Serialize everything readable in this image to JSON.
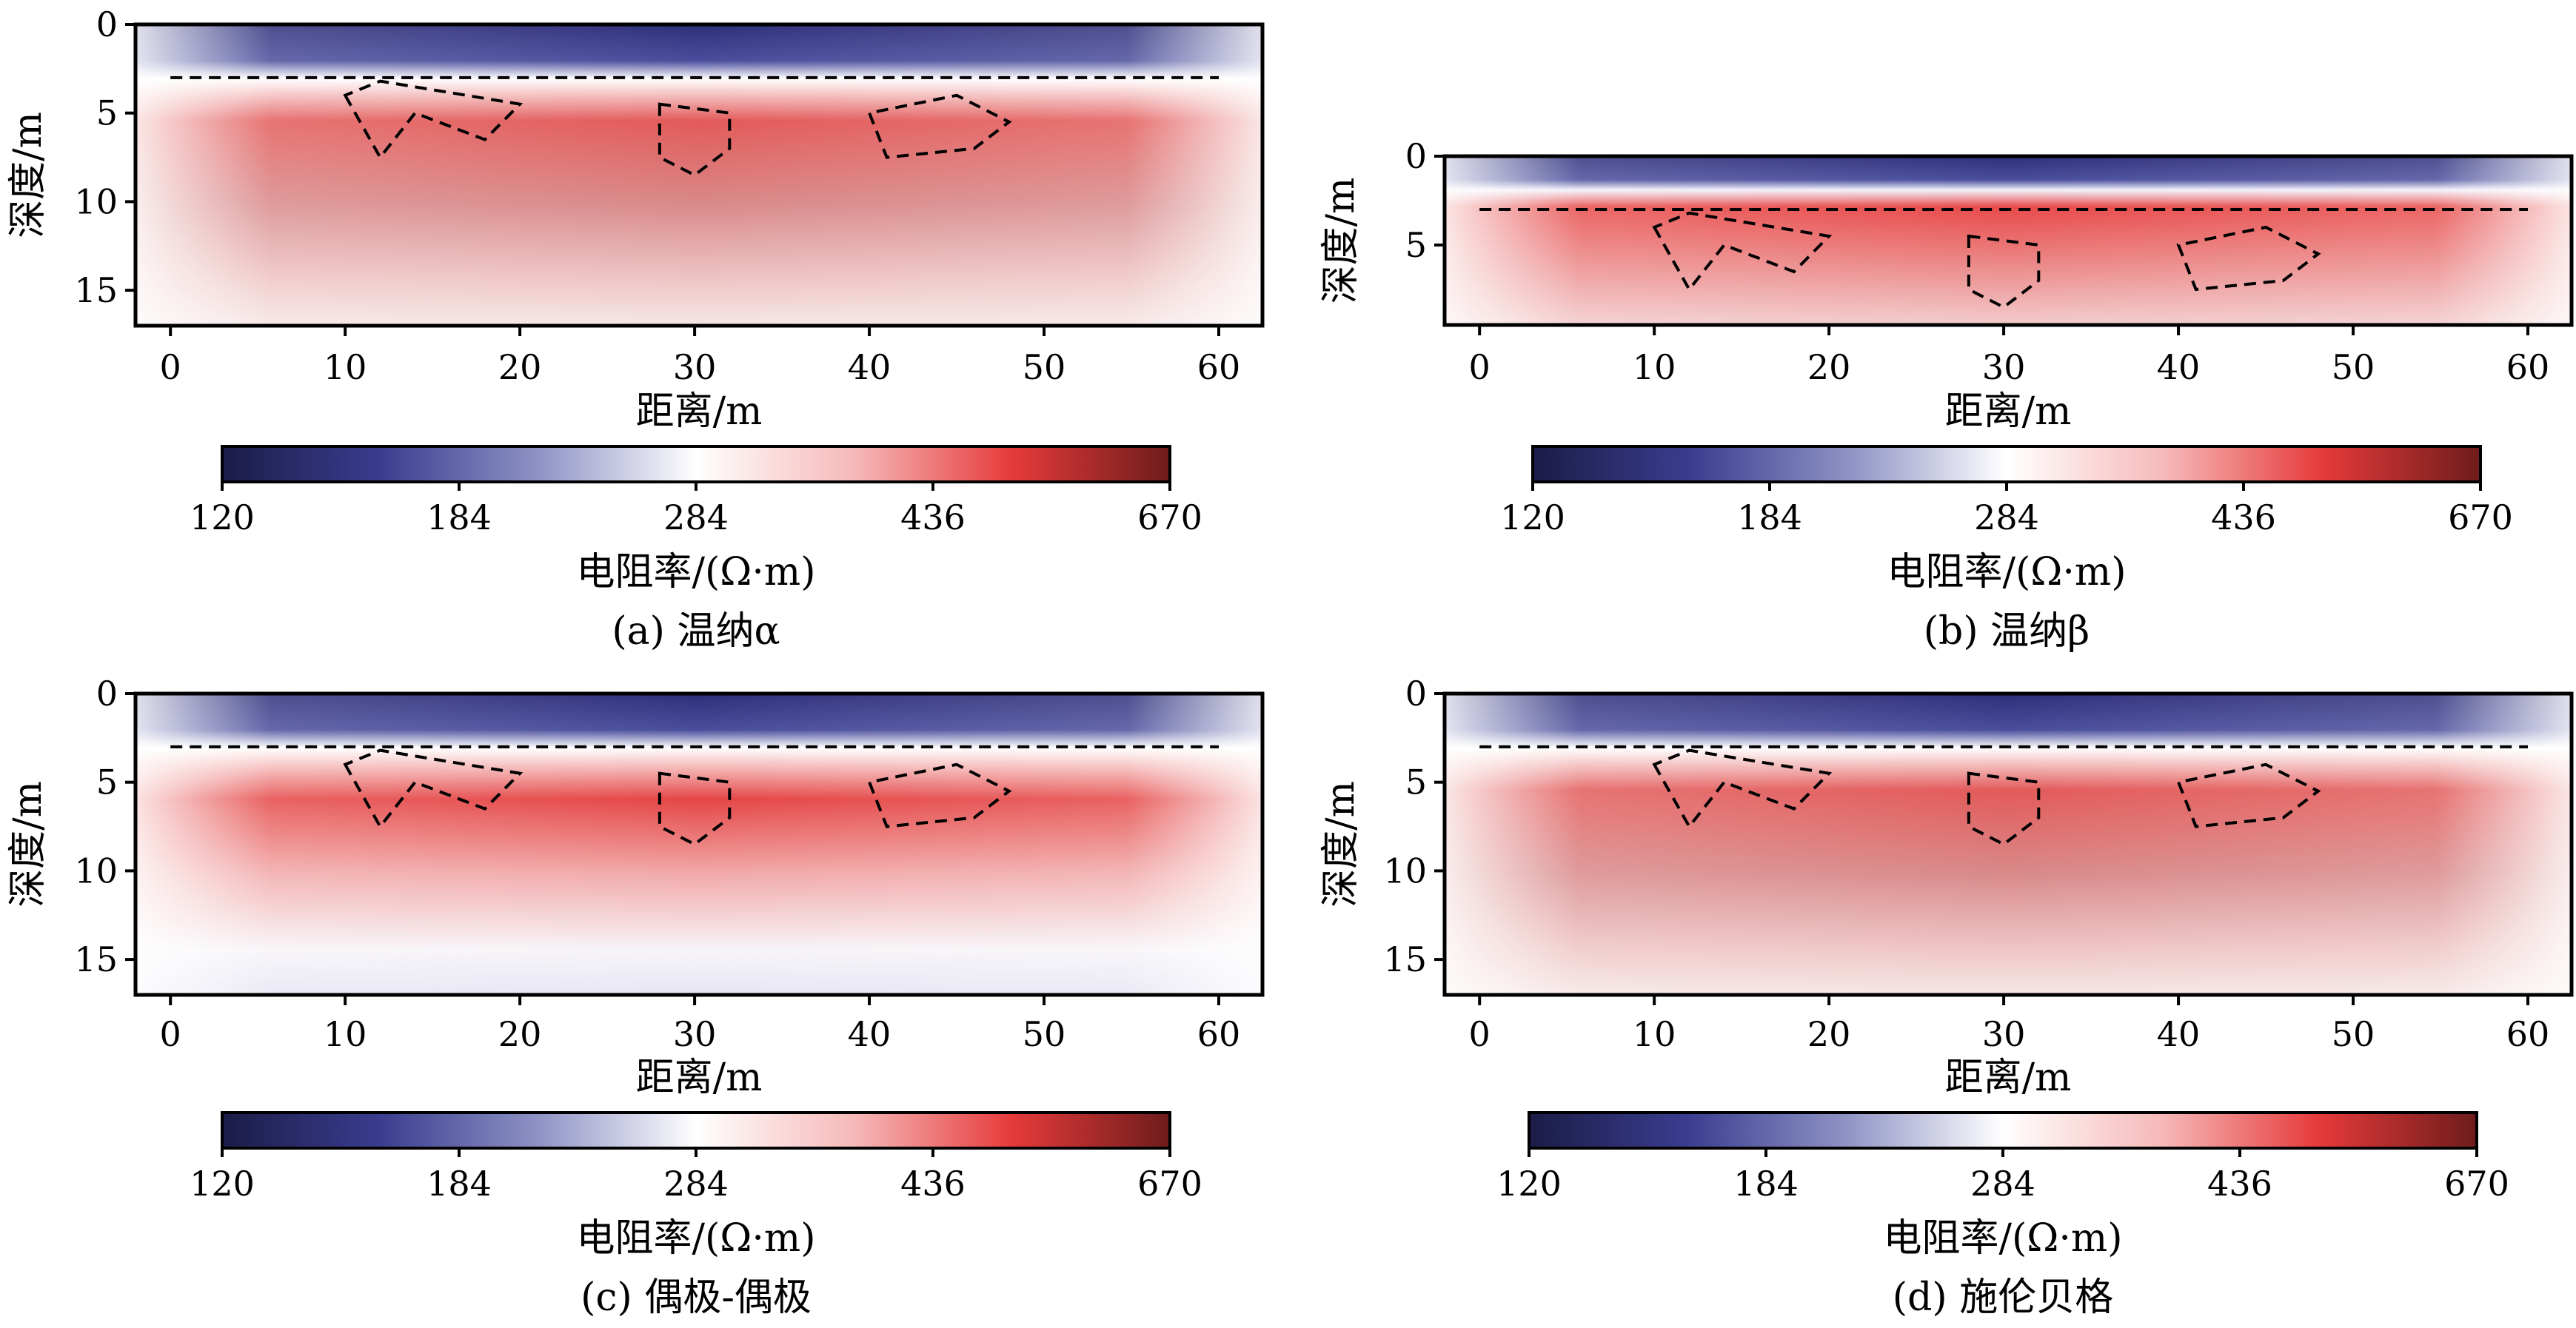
{
  "panels": [
    {
      "caption": "(a) 温纳α"
    },
    {
      "caption": "(b) 温纳β"
    },
    {
      "caption": "(c) 偶极-偶极"
    },
    {
      "caption": "(d) 施伦贝格"
    }
  ],
  "colorbar": {
    "label": "电阻率/(Ω·m)",
    "ticks": [
      "120",
      "184",
      "284",
      "436",
      "670"
    ],
    "colors": [
      "#1b1c47",
      "#3a3d8f",
      "#8e92c4",
      "#ffffff",
      "#f6b9b9",
      "#e63a3a",
      "#6e1c1c"
    ]
  },
  "chart_data": [
    {
      "type": "heatmap",
      "caption": "(a) 温纳α",
      "xlabel": "距离/m",
      "ylabel": "深度/m",
      "xlim": [
        -2,
        62.5
      ],
      "ylim": [
        17,
        0
      ],
      "xticks": [
        0,
        10,
        20,
        30,
        40,
        50,
        60
      ],
      "yticks": [
        0,
        5,
        10,
        15
      ],
      "boundary_depth": 3,
      "colorbar_range": [
        120,
        670
      ],
      "anomalies": [
        {
          "points": [
            [
              10,
              4
            ],
            [
              12,
              7.5
            ],
            [
              14,
              5
            ],
            [
              18,
              6.5
            ],
            [
              20,
              4.5
            ],
            [
              12,
              3.2
            ]
          ]
        },
        {
          "points": [
            [
              28,
              4.5
            ],
            [
              28,
              7.5
            ],
            [
              30,
              8.5
            ],
            [
              32,
              7
            ],
            [
              32,
              5
            ]
          ]
        },
        {
          "points": [
            [
              40,
              5
            ],
            [
              41,
              7.5
            ],
            [
              46,
              7
            ],
            [
              48,
              5.5
            ],
            [
              45,
              4
            ]
          ]
        }
      ]
    },
    {
      "type": "heatmap",
      "caption": "(b) 温纳β",
      "xlabel": "距离/m",
      "ylabel": "深度/m",
      "xlim": [
        -2,
        62.5
      ],
      "ylim": [
        9.5,
        0
      ],
      "xticks": [
        0,
        10,
        20,
        30,
        40,
        50,
        60
      ],
      "yticks": [
        0,
        5
      ],
      "boundary_depth": 3,
      "colorbar_range": [
        120,
        670
      ],
      "anomalies": [
        {
          "points": [
            [
              10,
              4
            ],
            [
              12,
              7.5
            ],
            [
              14,
              5
            ],
            [
              18,
              6.5
            ],
            [
              20,
              4.5
            ],
            [
              12,
              3.2
            ]
          ]
        },
        {
          "points": [
            [
              28,
              4.5
            ],
            [
              28,
              7.5
            ],
            [
              30,
              8.5
            ],
            [
              32,
              7
            ],
            [
              32,
              5
            ]
          ]
        },
        {
          "points": [
            [
              40,
              5
            ],
            [
              41,
              7.5
            ],
            [
              46,
              7
            ],
            [
              48,
              5.5
            ],
            [
              45,
              4
            ]
          ]
        }
      ]
    },
    {
      "type": "heatmap",
      "caption": "(c) 偶极-偶极",
      "xlabel": "距离/m",
      "ylabel": "深度/m",
      "xlim": [
        -2,
        62.5
      ],
      "ylim": [
        17,
        0
      ],
      "xticks": [
        0,
        10,
        20,
        30,
        40,
        50,
        60
      ],
      "yticks": [
        0,
        5,
        10,
        15
      ],
      "boundary_depth": 3,
      "colorbar_range": [
        120,
        670
      ],
      "anomalies": [
        {
          "points": [
            [
              10,
              4
            ],
            [
              12,
              7.5
            ],
            [
              14,
              5
            ],
            [
              18,
              6.5
            ],
            [
              20,
              4.5
            ],
            [
              12,
              3.2
            ]
          ]
        },
        {
          "points": [
            [
              28,
              4.5
            ],
            [
              28,
              7.5
            ],
            [
              30,
              8.5
            ],
            [
              32,
              7
            ],
            [
              32,
              5
            ]
          ]
        },
        {
          "points": [
            [
              40,
              5
            ],
            [
              41,
              7.5
            ],
            [
              46,
              7
            ],
            [
              48,
              5.5
            ],
            [
              45,
              4
            ]
          ]
        }
      ]
    },
    {
      "type": "heatmap",
      "caption": "(d) 施伦贝格",
      "xlabel": "距离/m",
      "ylabel": "深度/m",
      "xlim": [
        -2,
        62.5
      ],
      "ylim": [
        17,
        0
      ],
      "xticks": [
        0,
        10,
        20,
        30,
        40,
        50,
        60
      ],
      "yticks": [
        0,
        5,
        10,
        15
      ],
      "boundary_depth": 3,
      "colorbar_range": [
        120,
        670
      ],
      "anomalies": [
        {
          "points": [
            [
              10,
              4
            ],
            [
              12,
              7.5
            ],
            [
              14,
              5
            ],
            [
              18,
              6.5
            ],
            [
              20,
              4.5
            ],
            [
              12,
              3.2
            ]
          ]
        },
        {
          "points": [
            [
              28,
              4.5
            ],
            [
              28,
              7.5
            ],
            [
              30,
              8.5
            ],
            [
              32,
              7
            ],
            [
              32,
              5
            ]
          ]
        },
        {
          "points": [
            [
              40,
              5
            ],
            [
              41,
              7.5
            ],
            [
              46,
              7
            ],
            [
              48,
              5.5
            ],
            [
              45,
              4
            ]
          ]
        }
      ]
    }
  ]
}
